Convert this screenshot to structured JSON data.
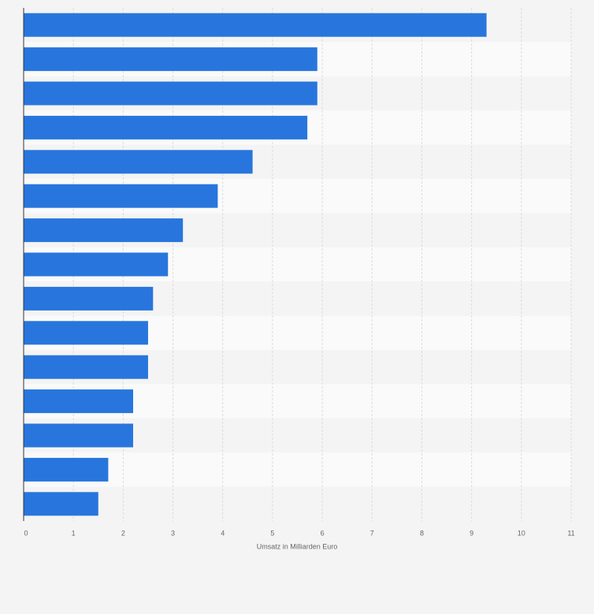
{
  "chart_data": {
    "type": "bar",
    "orientation": "horizontal",
    "x_label": "Umsatz in Milliarden Euro",
    "categories": [
      null,
      null,
      null,
      null,
      null,
      null,
      null,
      null,
      null,
      null,
      null,
      null,
      null,
      null,
      null
    ],
    "values": [
      9.3,
      5.9,
      5.9,
      5.7,
      4.6,
      3.9,
      3.2,
      2.9,
      2.6,
      2.5,
      2.5,
      2.2,
      2.2,
      1.7,
      1.5
    ],
    "color": "#2876dd",
    "xlim": [
      0,
      11
    ],
    "xticks": [
      0,
      1,
      2,
      3,
      4,
      5,
      6,
      7,
      8,
      9,
      10,
      11
    ],
    "grid": true
  }
}
